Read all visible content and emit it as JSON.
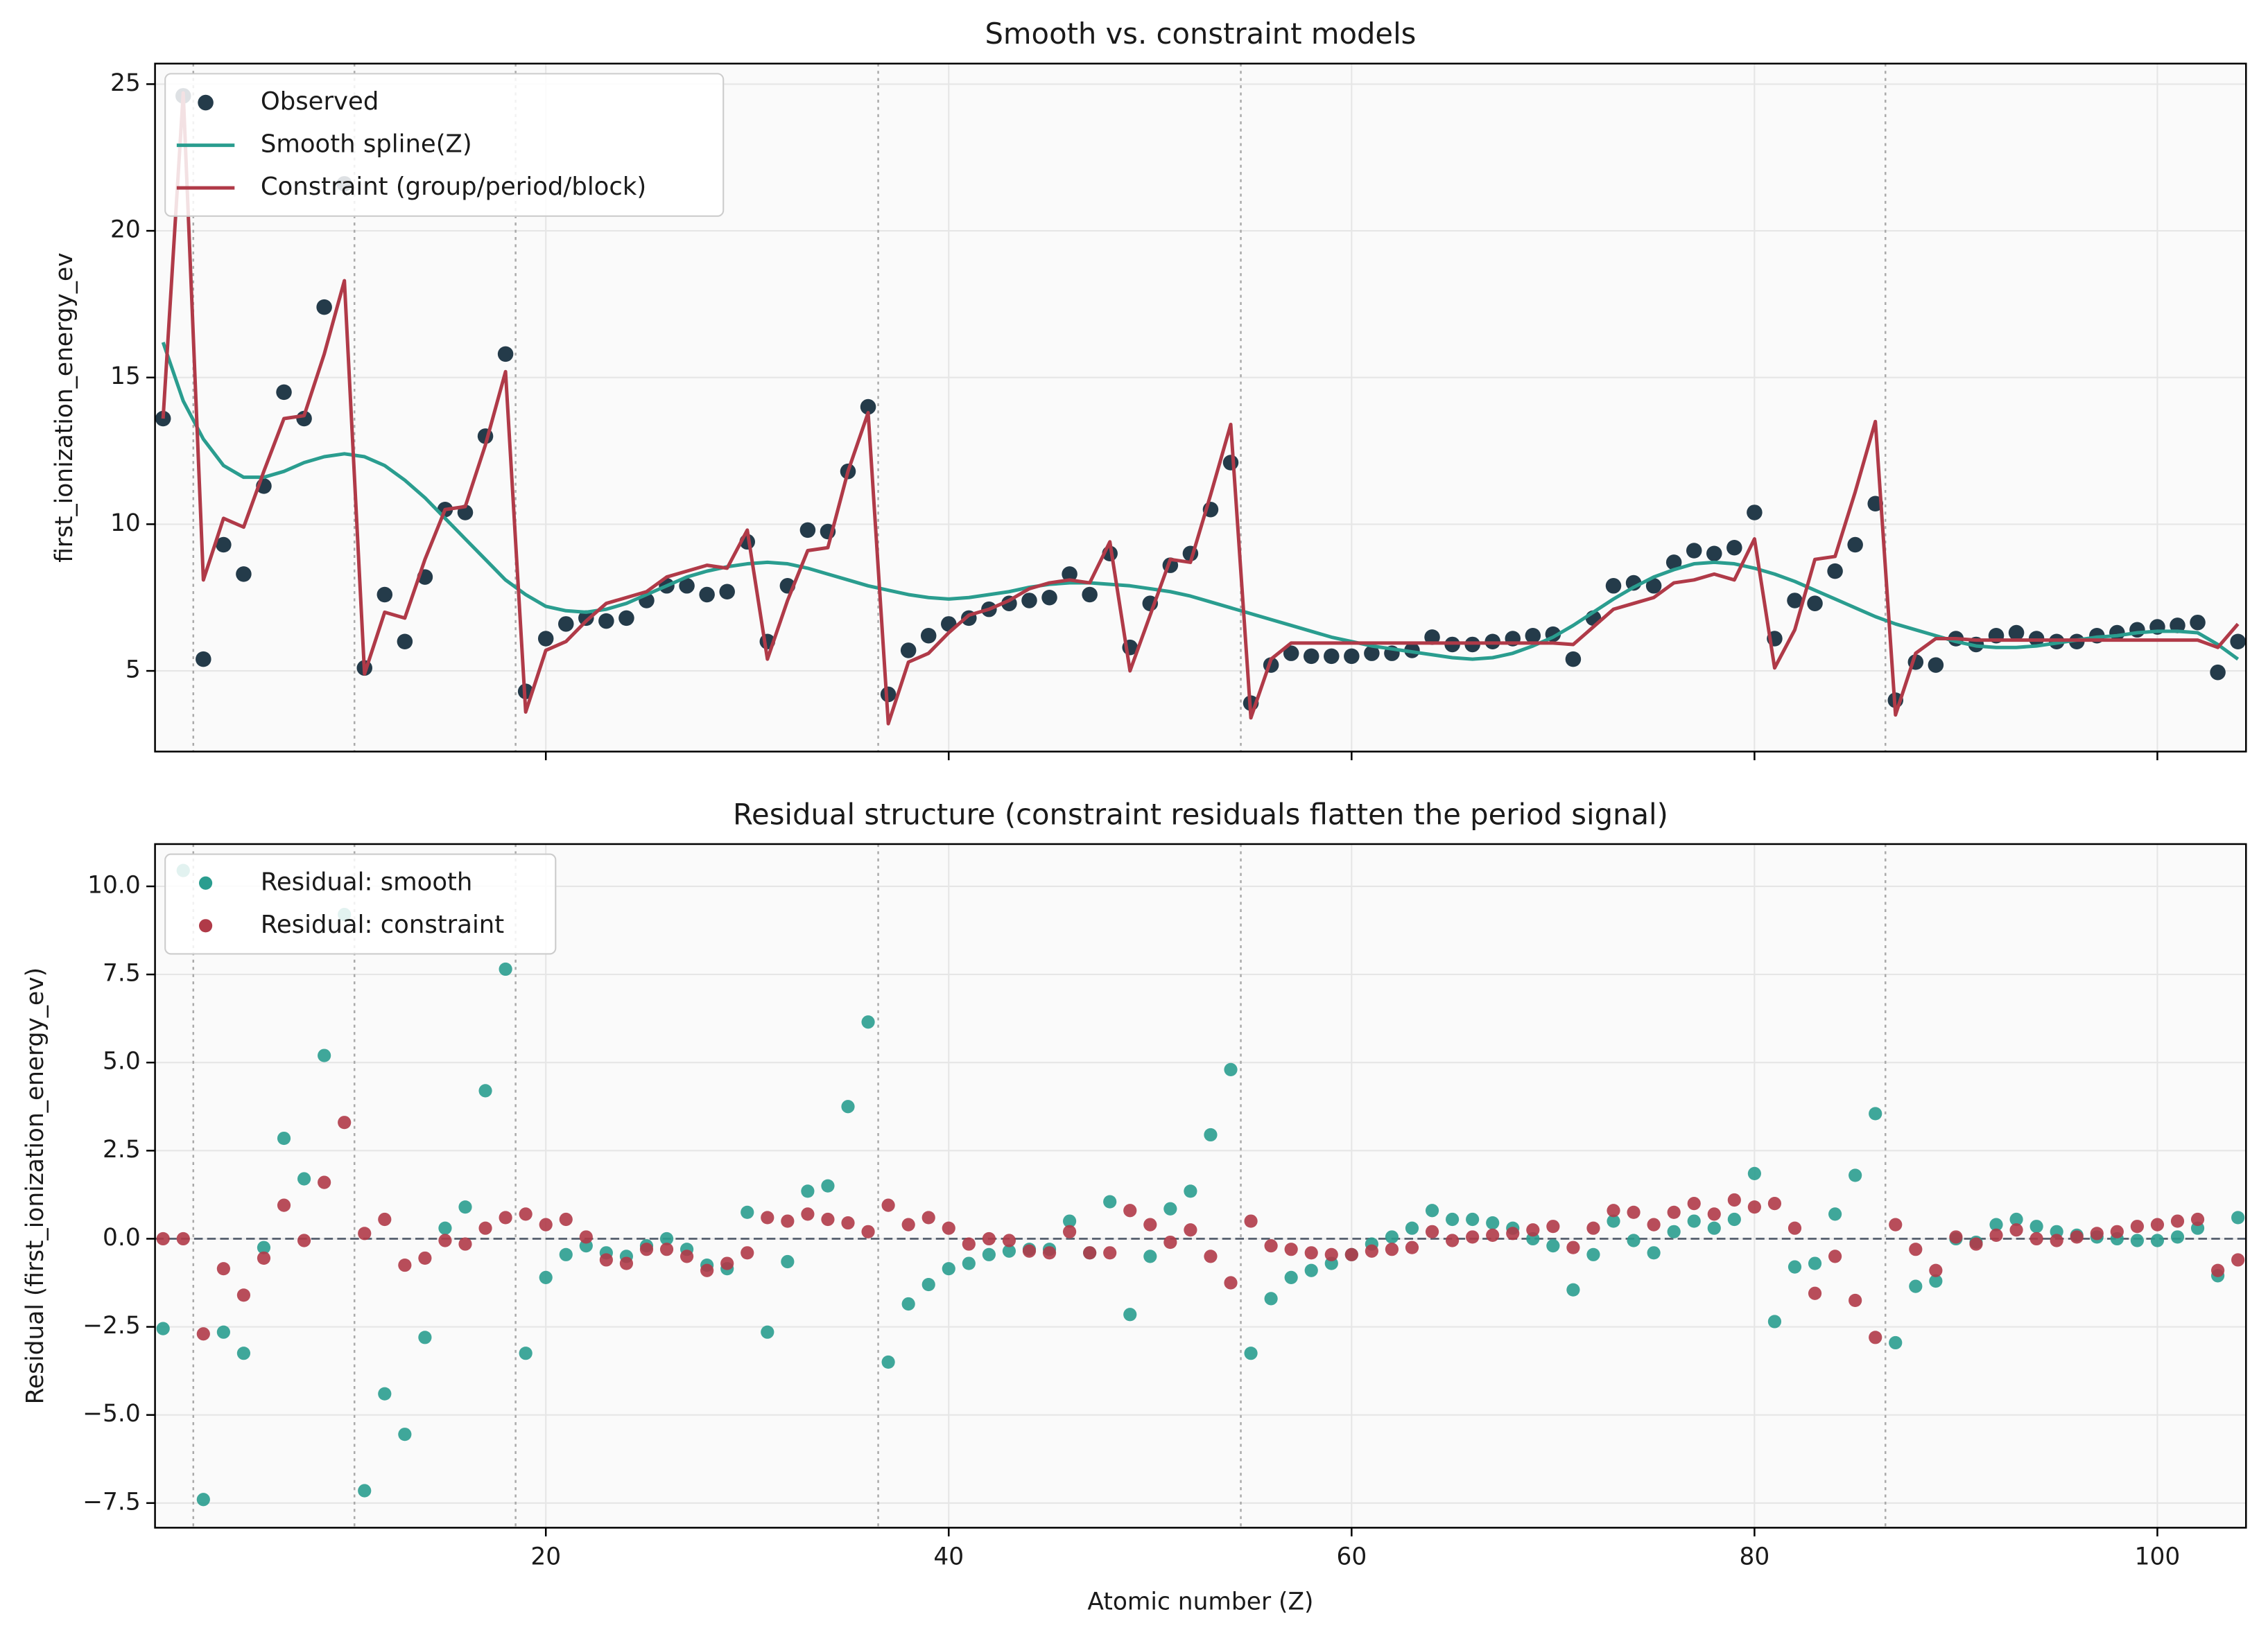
{
  "chart_data": [
    {
      "type": "line",
      "title": "Smooth vs. constraint models",
      "y_label": "first_ionization_energy_ev",
      "x": [
        1,
        2,
        3,
        4,
        5,
        6,
        7,
        8,
        9,
        10,
        11,
        12,
        13,
        14,
        15,
        16,
        17,
        18,
        19,
        20,
        21,
        22,
        23,
        24,
        25,
        26,
        27,
        28,
        29,
        30,
        31,
        32,
        33,
        34,
        35,
        36,
        37,
        38,
        39,
        40,
        41,
        42,
        43,
        44,
        45,
        46,
        47,
        48,
        49,
        50,
        51,
        52,
        53,
        54,
        55,
        56,
        57,
        58,
        59,
        60,
        61,
        62,
        63,
        64,
        65,
        66,
        67,
        68,
        69,
        70,
        71,
        72,
        73,
        74,
        75,
        76,
        77,
        78,
        79,
        80,
        81,
        82,
        83,
        84,
        85,
        86,
        87,
        88,
        89,
        90,
        91,
        92,
        93,
        94,
        95,
        96,
        97,
        98,
        99,
        100,
        101,
        102,
        103,
        104
      ],
      "xlim": [
        0.6,
        104.4
      ],
      "xticks": [
        20,
        40,
        60,
        80,
        100
      ],
      "xtick_labels": false,
      "ylim": [
        2.25,
        25.7
      ],
      "yticks": [
        5,
        10,
        15,
        20,
        25
      ],
      "grid": true,
      "legend": "upper left",
      "vlines": [
        2.5,
        10.5,
        18.5,
        36.5,
        54.5,
        86.5
      ],
      "series": [
        {
          "name": "Observed",
          "color": "#243b4a",
          "mode": "markers",
          "values": [
            13.6,
            24.6,
            5.4,
            9.3,
            8.3,
            11.3,
            14.5,
            13.6,
            17.4,
            21.6,
            5.1,
            7.6,
            6.0,
            8.2,
            10.5,
            10.4,
            13.0,
            15.8,
            4.3,
            6.1,
            6.6,
            6.8,
            6.7,
            6.8,
            7.4,
            7.9,
            7.9,
            7.6,
            7.7,
            9.4,
            6.0,
            7.9,
            9.8,
            9.75,
            11.8,
            14.0,
            4.2,
            5.7,
            6.2,
            6.6,
            6.8,
            7.1,
            7.3,
            7.4,
            7.5,
            8.3,
            7.6,
            9.0,
            5.8,
            7.3,
            8.6,
            9.0,
            10.5,
            12.1,
            3.9,
            5.2,
            5.6,
            5.5,
            5.5,
            5.5,
            5.6,
            5.6,
            5.7,
            6.15,
            5.9,
            5.9,
            6.0,
            6.1,
            6.2,
            6.25,
            5.4,
            6.8,
            7.9,
            8.0,
            7.9,
            8.7,
            9.1,
            9.0,
            9.2,
            10.4,
            6.1,
            7.4,
            7.3,
            8.4,
            9.3,
            10.7,
            4.0,
            5.3,
            5.2,
            6.1,
            5.9,
            6.2,
            6.3,
            6.1,
            6.0,
            6.0,
            6.2,
            6.3,
            6.4,
            6.5,
            6.55,
            6.65,
            4.95,
            6.0
          ]
        },
        {
          "name": "Smooth spline(Z)",
          "color": "#2a9d8f",
          "mode": "line",
          "values": [
            16.2,
            14.2,
            12.9,
            12.0,
            11.6,
            11.6,
            11.8,
            12.1,
            12.3,
            12.4,
            12.3,
            12.0,
            11.5,
            10.9,
            10.2,
            9.5,
            8.8,
            8.1,
            7.6,
            7.2,
            7.05,
            7.0,
            7.1,
            7.3,
            7.6,
            7.9,
            8.2,
            8.4,
            8.55,
            8.65,
            8.7,
            8.65,
            8.5,
            8.3,
            8.1,
            7.9,
            7.75,
            7.6,
            7.5,
            7.45,
            7.5,
            7.6,
            7.7,
            7.85,
            7.95,
            8.0,
            8.0,
            7.95,
            7.9,
            7.8,
            7.7,
            7.55,
            7.35,
            7.15,
            6.95,
            6.75,
            6.55,
            6.35,
            6.15,
            6.0,
            5.85,
            5.75,
            5.65,
            5.55,
            5.45,
            5.4,
            5.45,
            5.6,
            5.85,
            6.15,
            6.55,
            7.0,
            7.45,
            7.85,
            8.2,
            8.45,
            8.65,
            8.7,
            8.65,
            8.5,
            8.3,
            8.05,
            7.75,
            7.45,
            7.15,
            6.85,
            6.6,
            6.4,
            6.2,
            6.0,
            5.85,
            5.8,
            5.8,
            5.85,
            5.95,
            6.05,
            6.15,
            6.2,
            6.3,
            6.35,
            6.35,
            6.3,
            5.9,
            5.4
          ]
        },
        {
          "name": "Constraint (group/period/block)",
          "color": "#b03a48",
          "mode": "line",
          "values": [
            13.6,
            24.7,
            8.1,
            10.2,
            9.9,
            11.8,
            13.6,
            13.7,
            15.8,
            18.3,
            4.9,
            7.0,
            6.8,
            8.8,
            10.5,
            10.6,
            12.7,
            15.2,
            3.6,
            5.7,
            6.0,
            6.7,
            7.3,
            7.5,
            7.7,
            8.2,
            8.4,
            8.6,
            8.5,
            9.8,
            5.4,
            7.4,
            9.1,
            9.2,
            11.8,
            13.8,
            3.2,
            5.3,
            5.6,
            6.3,
            6.9,
            7.1,
            7.4,
            7.8,
            8.0,
            8.1,
            8.0,
            9.4,
            5.0,
            6.9,
            8.8,
            8.7,
            11.0,
            13.4,
            3.4,
            5.4,
            5.95,
            5.95,
            5.95,
            5.95,
            5.95,
            5.95,
            5.95,
            5.95,
            5.95,
            5.95,
            5.95,
            5.95,
            5.95,
            5.95,
            5.9,
            6.5,
            7.1,
            7.3,
            7.5,
            8.0,
            8.1,
            8.3,
            8.1,
            9.5,
            5.1,
            6.4,
            8.8,
            8.9,
            11.1,
            13.5,
            3.5,
            5.6,
            6.1,
            6.1,
            6.05,
            6.05,
            6.05,
            6.05,
            6.05,
            6.05,
            6.05,
            6.05,
            6.05,
            6.05,
            6.05,
            6.05,
            5.8,
            6.6
          ]
        }
      ]
    },
    {
      "type": "scatter",
      "title": "Residual structure (constraint residuals flatten the period signal)",
      "x_label": "Atomic number (Z)",
      "y_label": "Residual (first_ionization_energy_ev)",
      "x": [
        1,
        2,
        3,
        4,
        5,
        6,
        7,
        8,
        9,
        10,
        11,
        12,
        13,
        14,
        15,
        16,
        17,
        18,
        19,
        20,
        21,
        22,
        23,
        24,
        25,
        26,
        27,
        28,
        29,
        30,
        31,
        32,
        33,
        34,
        35,
        36,
        37,
        38,
        39,
        40,
        41,
        42,
        43,
        44,
        45,
        46,
        47,
        48,
        49,
        50,
        51,
        52,
        53,
        54,
        55,
        56,
        57,
        58,
        59,
        60,
        61,
        62,
        63,
        64,
        65,
        66,
        67,
        68,
        69,
        70,
        71,
        72,
        73,
        74,
        75,
        76,
        77,
        78,
        79,
        80,
        81,
        82,
        83,
        84,
        85,
        86,
        87,
        88,
        89,
        90,
        91,
        92,
        93,
        94,
        95,
        96,
        97,
        98,
        99,
        100,
        101,
        102,
        103,
        104
      ],
      "xlim": [
        0.6,
        104.4
      ],
      "xticks": [
        20,
        40,
        60,
        80,
        100
      ],
      "xtick_labels": true,
      "ylim": [
        -8.2,
        11.2
      ],
      "yticks": [
        {
          "value": -7.5,
          "label": "−7.5"
        },
        {
          "value": -5,
          "label": "−5.0"
        },
        {
          "value": -2.5,
          "label": "−2.5"
        },
        {
          "value": 0,
          "label": "0.0"
        },
        2.5,
        {
          "value": 5,
          "label": "5.0"
        },
        7.5,
        {
          "value": 10,
          "label": "10.0"
        }
      ],
      "grid": true,
      "legend": "upper left",
      "hline": 0,
      "vlines": [
        2.5,
        10.5,
        18.5,
        36.5,
        54.5,
        86.5
      ],
      "series": [
        {
          "name": "Residual: smooth",
          "color": "#2a9d8f",
          "mode": "markers",
          "values": [
            -2.55,
            10.45,
            -7.4,
            -2.65,
            -3.25,
            -0.25,
            2.85,
            1.7,
            5.2,
            9.2,
            -7.15,
            -4.4,
            -5.55,
            -2.8,
            0.3,
            0.9,
            4.2,
            7.65,
            -3.25,
            -1.1,
            -0.45,
            -0.2,
            -0.4,
            -0.5,
            -0.2,
            0.0,
            -0.3,
            -0.75,
            -0.85,
            0.75,
            -2.65,
            -0.65,
            1.35,
            1.5,
            3.75,
            6.15,
            -3.5,
            -1.85,
            -1.3,
            -0.85,
            -0.7,
            -0.45,
            -0.35,
            -0.3,
            -0.3,
            0.5,
            -0.4,
            1.05,
            -2.15,
            -0.5,
            0.85,
            1.35,
            2.95,
            4.8,
            -3.25,
            -1.7,
            -1.1,
            -0.9,
            -0.7,
            -0.45,
            -0.15,
            0.05,
            0.3,
            0.8,
            0.55,
            0.55,
            0.45,
            0.3,
            0.0,
            -0.2,
            -1.45,
            -0.45,
            0.5,
            -0.05,
            -0.4,
            0.2,
            0.5,
            0.3,
            0.55,
            1.85,
            -2.35,
            -0.8,
            -0.7,
            0.7,
            1.8,
            3.55,
            -2.95,
            -1.35,
            -1.2,
            0.0,
            -0.1,
            0.4,
            0.55,
            0.35,
            0.2,
            0.1,
            0.05,
            0.0,
            -0.05,
            -0.05,
            0.05,
            0.3,
            -1.05,
            0.6
          ]
        },
        {
          "name": "Residual: constraint",
          "color": "#b03a48",
          "mode": "markers",
          "values": [
            0.0,
            0.0,
            -2.7,
            -0.85,
            -1.6,
            -0.55,
            0.95,
            -0.05,
            1.6,
            3.3,
            0.15,
            0.55,
            -0.75,
            -0.55,
            -0.05,
            -0.15,
            0.3,
            0.6,
            0.7,
            0.4,
            0.55,
            0.05,
            -0.6,
            -0.7,
            -0.3,
            -0.3,
            -0.5,
            -0.9,
            -0.7,
            -0.4,
            0.6,
            0.5,
            0.7,
            0.55,
            0.45,
            0.2,
            0.95,
            0.4,
            0.6,
            0.3,
            -0.15,
            0.0,
            -0.05,
            -0.35,
            -0.4,
            0.2,
            -0.4,
            -0.4,
            0.8,
            0.4,
            -0.1,
            0.25,
            -0.5,
            -1.25,
            0.5,
            -0.2,
            -0.3,
            -0.4,
            -0.45,
            -0.45,
            -0.35,
            -0.3,
            -0.25,
            0.2,
            -0.05,
            0.05,
            0.1,
            0.15,
            0.25,
            0.35,
            -0.25,
            0.3,
            0.8,
            0.75,
            0.4,
            0.75,
            1.0,
            0.7,
            1.1,
            0.9,
            1.0,
            0.3,
            -1.55,
            -0.5,
            -1.75,
            -2.8,
            0.4,
            -0.3,
            -0.9,
            0.05,
            -0.15,
            0.1,
            0.25,
            0.0,
            -0.05,
            0.05,
            0.15,
            0.2,
            0.35,
            0.4,
            0.5,
            0.55,
            -0.9,
            -0.6
          ]
        }
      ]
    }
  ]
}
